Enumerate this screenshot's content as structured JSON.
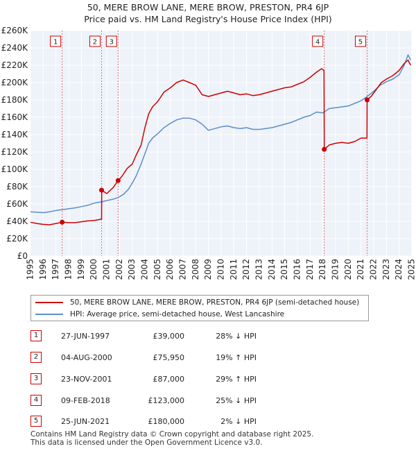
{
  "header": {
    "title_line1": "50, MERE BROW LANE, MERE BROW, PRESTON, PR4 6JP",
    "title_line2": "Price paid vs. HM Land Registry's House Price Index (HPI)"
  },
  "chart_data": {
    "type": "line",
    "title": "Price paid vs. HM Land Registry's House Price Index (HPI)",
    "x_ticks": [
      1995,
      1996,
      1997,
      1998,
      1999,
      2000,
      2001,
      2002,
      2003,
      2004,
      2005,
      2006,
      2007,
      2008,
      2009,
      2010,
      2011,
      2012,
      2013,
      2014,
      2015,
      2016,
      2017,
      2018,
      2019,
      2020,
      2021,
      2022,
      2023,
      2024,
      2025
    ],
    "y_ticks": [
      0,
      20000,
      40000,
      60000,
      80000,
      100000,
      120000,
      140000,
      160000,
      180000,
      200000,
      220000,
      240000,
      260000
    ],
    "y_tick_labels": [
      "£0",
      "£20K",
      "£40K",
      "£60K",
      "£80K",
      "£100K",
      "£120K",
      "£140K",
      "£160K",
      "£180K",
      "£200K",
      "£220K",
      "£240K",
      "£260K"
    ],
    "xlim": [
      1995,
      2025
    ],
    "ylim": [
      0,
      260000
    ],
    "grid": true,
    "series": [
      {
        "name": "50, MERE BROW LANE, MERE BROW, PRESTON, PR4 6JP (semi-detached house)",
        "color": "#cc0000",
        "points": [
          [
            1995.0,
            39000
          ],
          [
            1995.5,
            37500
          ],
          [
            1996.0,
            36500
          ],
          [
            1996.5,
            36000
          ],
          [
            1997.0,
            37500
          ],
          [
            1997.49,
            39000
          ],
          [
            1998.0,
            38500
          ],
          [
            1998.5,
            38500
          ],
          [
            1999.0,
            39500
          ],
          [
            1999.5,
            40500
          ],
          [
            2000.0,
            41000
          ],
          [
            2000.59,
            42500
          ],
          [
            2000.6,
            75950
          ],
          [
            2001.0,
            72000
          ],
          [
            2001.5,
            79000
          ],
          [
            2001.89,
            87000
          ],
          [
            2002.2,
            92000
          ],
          [
            2002.6,
            101000
          ],
          [
            2003.0,
            106000
          ],
          [
            2003.3,
            116000
          ],
          [
            2003.7,
            128000
          ],
          [
            2004.0,
            148000
          ],
          [
            2004.3,
            164000
          ],
          [
            2004.6,
            172000
          ],
          [
            2005.0,
            178000
          ],
          [
            2005.5,
            189000
          ],
          [
            2006.0,
            194000
          ],
          [
            2006.5,
            200000
          ],
          [
            2007.0,
            203000
          ],
          [
            2007.5,
            200000
          ],
          [
            2008.0,
            197000
          ],
          [
            2008.5,
            186000
          ],
          [
            2009.0,
            184000
          ],
          [
            2009.5,
            186000
          ],
          [
            2010.0,
            188000
          ],
          [
            2010.5,
            190000
          ],
          [
            2011.0,
            188000
          ],
          [
            2011.5,
            186000
          ],
          [
            2012.0,
            187000
          ],
          [
            2012.5,
            185000
          ],
          [
            2013.0,
            186000
          ],
          [
            2013.5,
            188000
          ],
          [
            2014.0,
            190000
          ],
          [
            2014.5,
            192000
          ],
          [
            2015.0,
            194000
          ],
          [
            2015.5,
            195000
          ],
          [
            2016.0,
            198000
          ],
          [
            2016.5,
            201000
          ],
          [
            2017.0,
            206000
          ],
          [
            2017.5,
            212000
          ],
          [
            2017.9,
            216000
          ],
          [
            2018.09,
            214000
          ],
          [
            2018.11,
            123000
          ],
          [
            2018.5,
            128000
          ],
          [
            2019.0,
            130000
          ],
          [
            2019.5,
            131000
          ],
          [
            2020.0,
            130000
          ],
          [
            2020.5,
            132000
          ],
          [
            2021.0,
            136000
          ],
          [
            2021.47,
            136000
          ],
          [
            2021.48,
            180000
          ],
          [
            2021.8,
            184000
          ],
          [
            2022.2,
            192000
          ],
          [
            2022.6,
            200000
          ],
          [
            2023.0,
            204000
          ],
          [
            2023.5,
            208000
          ],
          [
            2024.0,
            214000
          ],
          [
            2024.4,
            222000
          ],
          [
            2024.7,
            226000
          ],
          [
            2024.9,
            220000
          ]
        ]
      },
      {
        "name": "HPI: Average price, semi-detached house, West Lancashire",
        "color": "#5b8ec9",
        "points": [
          [
            1995.0,
            51000
          ],
          [
            1995.5,
            50500
          ],
          [
            1996.0,
            50000
          ],
          [
            1996.5,
            51000
          ],
          [
            1997.0,
            52500
          ],
          [
            1997.5,
            53500
          ],
          [
            1998.0,
            54500
          ],
          [
            1998.5,
            55500
          ],
          [
            1999.0,
            57000
          ],
          [
            1999.5,
            58500
          ],
          [
            2000.0,
            61000
          ],
          [
            2000.6,
            62500
          ],
          [
            2001.0,
            64000
          ],
          [
            2001.5,
            65500
          ],
          [
            2001.9,
            67500
          ],
          [
            2002.3,
            71000
          ],
          [
            2002.7,
            77000
          ],
          [
            2003.0,
            84000
          ],
          [
            2003.3,
            92000
          ],
          [
            2003.7,
            106000
          ],
          [
            2004.0,
            118000
          ],
          [
            2004.3,
            130000
          ],
          [
            2004.6,
            136000
          ],
          [
            2005.0,
            141000
          ],
          [
            2005.5,
            148000
          ],
          [
            2006.0,
            153000
          ],
          [
            2006.5,
            157000
          ],
          [
            2007.0,
            159000
          ],
          [
            2007.5,
            159000
          ],
          [
            2008.0,
            157000
          ],
          [
            2008.5,
            152000
          ],
          [
            2009.0,
            145000
          ],
          [
            2009.5,
            147000
          ],
          [
            2010.0,
            149000
          ],
          [
            2010.5,
            150000
          ],
          [
            2011.0,
            148000
          ],
          [
            2011.5,
            147000
          ],
          [
            2012.0,
            148000
          ],
          [
            2012.5,
            146000
          ],
          [
            2013.0,
            146000
          ],
          [
            2013.5,
            147000
          ],
          [
            2014.0,
            148000
          ],
          [
            2014.5,
            150000
          ],
          [
            2015.0,
            152000
          ],
          [
            2015.5,
            154000
          ],
          [
            2016.0,
            157000
          ],
          [
            2016.5,
            160000
          ],
          [
            2017.0,
            162000
          ],
          [
            2017.5,
            166000
          ],
          [
            2018.0,
            165000
          ],
          [
            2018.5,
            170000
          ],
          [
            2019.0,
            171000
          ],
          [
            2019.5,
            172000
          ],
          [
            2020.0,
            173000
          ],
          [
            2020.5,
            176000
          ],
          [
            2021.0,
            179000
          ],
          [
            2021.5,
            184000
          ],
          [
            2022.0,
            190000
          ],
          [
            2022.5,
            197000
          ],
          [
            2023.0,
            201000
          ],
          [
            2023.5,
            204000
          ],
          [
            2024.0,
            209000
          ],
          [
            2024.4,
            220000
          ],
          [
            2024.7,
            232000
          ],
          [
            2024.9,
            226000
          ]
        ]
      }
    ],
    "sales": [
      {
        "num": "1",
        "x": 1997.49,
        "y": 39000
      },
      {
        "num": "2",
        "x": 2000.59,
        "y": 75950
      },
      {
        "num": "3",
        "x": 2001.89,
        "y": 87000
      },
      {
        "num": "4",
        "x": 2018.11,
        "y": 123000
      },
      {
        "num": "5",
        "x": 2021.48,
        "y": 180000
      }
    ]
  },
  "legend": {
    "items": [
      {
        "label": "50, MERE BROW LANE, MERE BROW, PRESTON, PR4 6JP (semi-detached house)",
        "color": "#cc0000"
      },
      {
        "label": "HPI: Average price, semi-detached house, West Lancashire",
        "color": "#5b8ec9"
      }
    ]
  },
  "sales_table": [
    {
      "num": "1",
      "date": "27-JUN-1997",
      "price": "£39,000",
      "hpi": "28% ↓ HPI"
    },
    {
      "num": "2",
      "date": "04-AUG-2000",
      "price": "£75,950",
      "hpi": "19% ↑ HPI"
    },
    {
      "num": "3",
      "date": "23-NOV-2001",
      "price": "£87,000",
      "hpi": "29% ↑ HPI"
    },
    {
      "num": "4",
      "date": "09-FEB-2018",
      "price": "£123,000",
      "hpi": "25% ↓ HPI"
    },
    {
      "num": "5",
      "date": "25-JUN-2021",
      "price": "£180,000",
      "hpi": "2% ↓ HPI"
    }
  ],
  "footer": {
    "line1": "Contains HM Land Registry data © Crown copyright and database right 2025.",
    "line2": "This data is licensed under the Open Government Licence v3.0."
  }
}
